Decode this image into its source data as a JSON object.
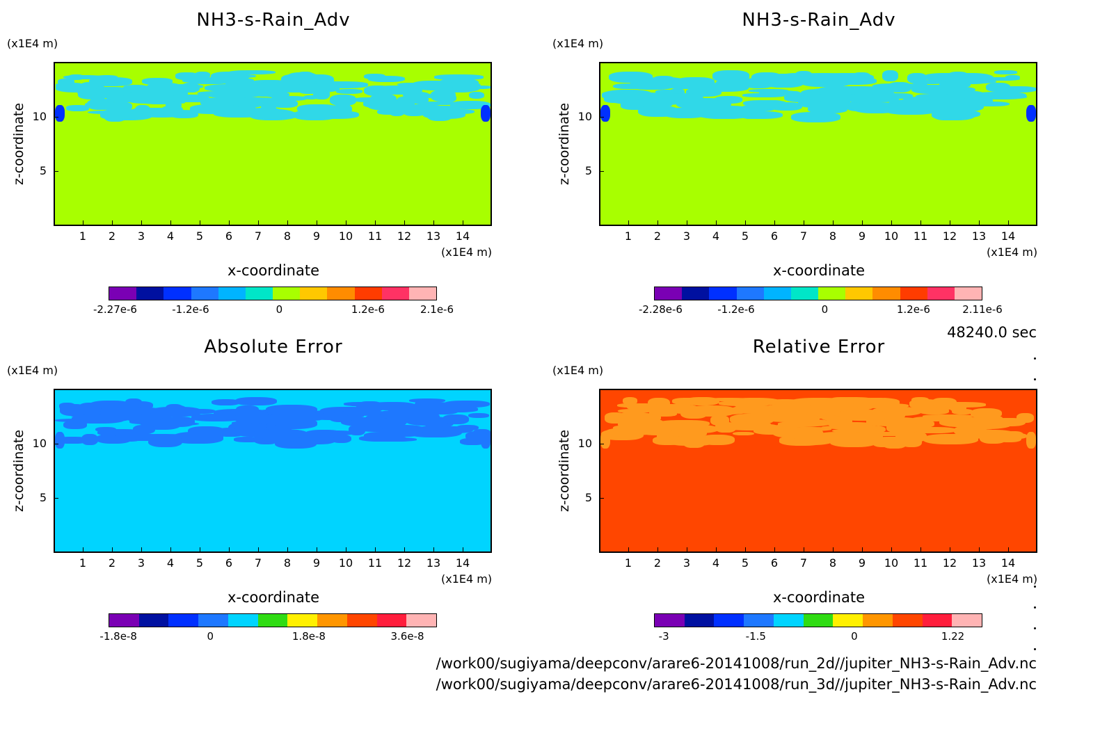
{
  "chart_data": [
    {
      "type": "heatmap",
      "title": "NH3-s-Rain_Adv",
      "xlabel": "x-coordinate",
      "ylabel": "z-coordinate",
      "x_unit": "(x1E4 m)",
      "y_unit": "(x1E4 m)",
      "x_ticks": [
        "1",
        "2",
        "3",
        "4",
        "5",
        "6",
        "7",
        "8",
        "9",
        "10",
        "11",
        "12",
        "13",
        "14"
      ],
      "y_ticks": [
        "5",
        "10"
      ],
      "xlim": [
        0,
        15
      ],
      "ylim": [
        0,
        15
      ],
      "colorbar_labels": [
        "-2.27e-6",
        "-1.2e-6",
        "0",
        "1.2e-6",
        "2.1e-6"
      ],
      "colorbar_colors": [
        "#7a00b4",
        "#0010a0",
        "#0030ff",
        "#1e78ff",
        "#00b4ff",
        "#00e6c8",
        "#a8ff00",
        "#ffc800",
        "#ff8c00",
        "#ff3c00",
        "#ff3264",
        "#ffb4b4"
      ],
      "background": "#a8ff00",
      "feature": "#30d8e8"
    },
    {
      "type": "heatmap",
      "title": "NH3-s-Rain_Adv",
      "xlabel": "x-coordinate",
      "ylabel": "z-coordinate",
      "x_unit": "(x1E4 m)",
      "y_unit": "(x1E4 m)",
      "x_ticks": [
        "1",
        "2",
        "3",
        "4",
        "5",
        "6",
        "7",
        "8",
        "9",
        "10",
        "11",
        "12",
        "13",
        "14"
      ],
      "y_ticks": [
        "5",
        "10"
      ],
      "xlim": [
        0,
        15
      ],
      "ylim": [
        0,
        15
      ],
      "colorbar_labels": [
        "-2.28e-6",
        "-1.2e-6",
        "0",
        "1.2e-6",
        "2.11e-6"
      ],
      "colorbar_colors": [
        "#7a00b4",
        "#0010a0",
        "#0030ff",
        "#1e78ff",
        "#00b4ff",
        "#00e6c8",
        "#a8ff00",
        "#ffc800",
        "#ff8c00",
        "#ff3c00",
        "#ff3264",
        "#ffb4b4"
      ],
      "background": "#a8ff00",
      "feature": "#30d8e8"
    },
    {
      "type": "heatmap",
      "title": "Absolute Error",
      "xlabel": "x-coordinate",
      "ylabel": "z-coordinate",
      "x_unit": "(x1E4 m)",
      "y_unit": "(x1E4 m)",
      "x_ticks": [
        "1",
        "2",
        "3",
        "4",
        "5",
        "6",
        "7",
        "8",
        "9",
        "10",
        "11",
        "12",
        "13",
        "14"
      ],
      "y_ticks": [
        "5",
        "10"
      ],
      "xlim": [
        0,
        15
      ],
      "ylim": [
        0,
        15
      ],
      "colorbar_labels": [
        "-1.8e-8",
        "0",
        "1.8e-8",
        "3.6e-8"
      ],
      "colorbar_colors": [
        "#7a00b4",
        "#0010a0",
        "#0030ff",
        "#1e78ff",
        "#00d4ff",
        "#30dc14",
        "#fff000",
        "#ff9600",
        "#ff4600",
        "#ff1e3c",
        "#ffb4b4"
      ],
      "background": "#00d4ff",
      "feature": "#1e78ff"
    },
    {
      "type": "heatmap",
      "title": "Relative Error",
      "xlabel": "x-coordinate",
      "ylabel": "z-coordinate",
      "x_unit": "(x1E4 m)",
      "y_unit": "(x1E4 m)",
      "x_ticks": [
        "1",
        "2",
        "3",
        "4",
        "5",
        "6",
        "7",
        "8",
        "9",
        "10",
        "11",
        "12",
        "13",
        "14"
      ],
      "y_ticks": [
        "5",
        "10"
      ],
      "xlim": [
        0,
        15
      ],
      "ylim": [
        0,
        15
      ],
      "colorbar_labels": [
        "-3",
        "-1.5",
        "0",
        "1.22"
      ],
      "colorbar_colors": [
        "#7a00b4",
        "#0010a0",
        "#0030ff",
        "#1e78ff",
        "#00d4ff",
        "#30dc14",
        "#fff000",
        "#ff9600",
        "#ff4600",
        "#ff1e3c",
        "#ffb4b4"
      ],
      "background": "#ff4600",
      "feature": "#ff9a1e"
    }
  ],
  "time_label": "48240.0 sec",
  "footer": {
    "path1": "/work00/sugiyama/deepconv/arare6-20141008/run_2d//jupiter_NH3-s-Rain_Adv.nc",
    "path2": "/work00/sugiyama/deepconv/arare6-20141008/run_3d//jupiter_NH3-s-Rain_Adv.nc"
  }
}
